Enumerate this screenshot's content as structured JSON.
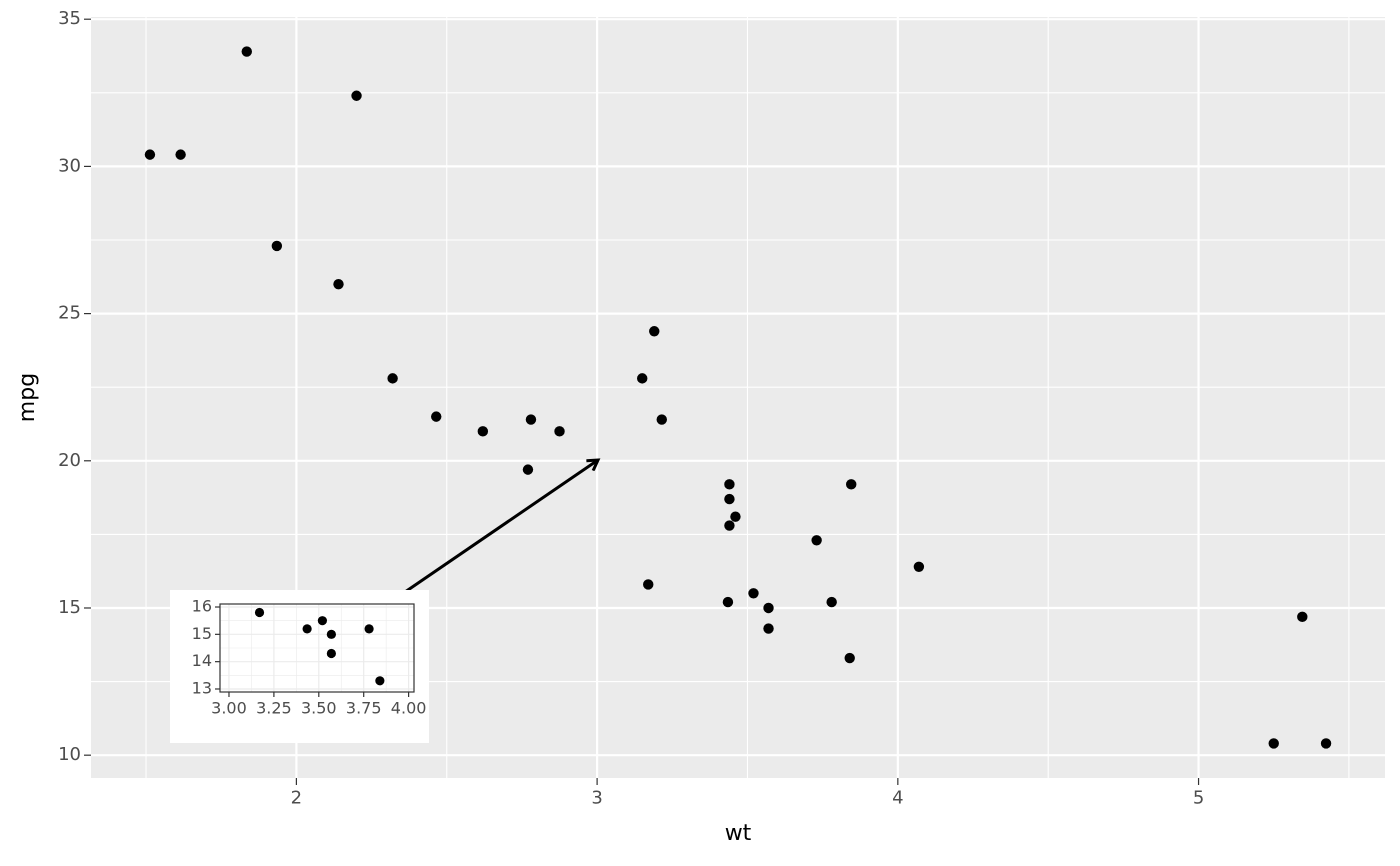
{
  "chart_data": [
    {
      "type": "scatter",
      "x_label": "wt",
      "y_label": "mpg",
      "x": [
        2.62,
        2.875,
        2.32,
        3.215,
        3.44,
        3.46,
        3.57,
        3.19,
        3.15,
        3.44,
        3.44,
        4.07,
        3.73,
        3.78,
        5.25,
        5.424,
        5.345,
        2.2,
        1.615,
        1.835,
        2.465,
        3.52,
        3.435,
        3.84,
        3.845,
        1.935,
        2.14,
        1.513,
        3.17,
        2.77,
        3.57,
        2.78
      ],
      "values": [
        21.0,
        21.0,
        22.8,
        21.4,
        18.7,
        18.1,
        14.3,
        24.4,
        22.8,
        19.2,
        17.8,
        16.4,
        17.3,
        15.2,
        10.4,
        10.4,
        14.7,
        32.4,
        30.4,
        33.9,
        21.5,
        15.5,
        15.2,
        13.3,
        19.2,
        27.3,
        26.0,
        30.4,
        15.8,
        19.7,
        15.0,
        21.4
      ],
      "color": "#000000",
      "xlim": [
        1.317,
        5.62
      ],
      "ylim": [
        9.225,
        35.075
      ],
      "xticks": [
        2,
        3,
        4,
        5
      ],
      "yticks": [
        10,
        15,
        20,
        25,
        30,
        35
      ],
      "grid": true,
      "panel_color": "#ebebeb",
      "grid_color": "#ffffff"
    },
    {
      "type": "scatter",
      "x": [
        3.17,
        3.435,
        3.52,
        3.57,
        3.57,
        3.78,
        3.84
      ],
      "values": [
        15.8,
        15.2,
        15.5,
        15.0,
        14.3,
        15.2,
        13.3
      ],
      "color": "#000000",
      "xlim": [
        2.95,
        4.03
      ],
      "ylim": [
        12.89,
        16.11
      ],
      "xticks": [
        {
          "value": 3,
          "label": "3.00"
        },
        {
          "value": 3.25,
          "label": "3.25"
        },
        {
          "value": 3.5,
          "label": "3.50"
        },
        {
          "value": 3.75,
          "label": "3.75"
        },
        {
          "value": 4,
          "label": "4.00"
        }
      ],
      "yticks": [
        13,
        14,
        15,
        16
      ],
      "grid": true,
      "panel_color": "#ffffff",
      "grid_color": "#ebebeb",
      "border_color": "#333333"
    }
  ]
}
